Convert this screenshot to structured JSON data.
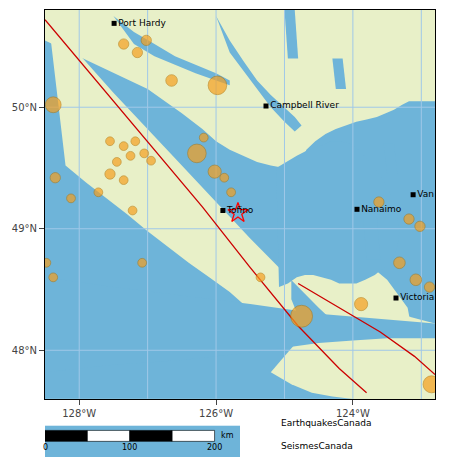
{
  "chart_data": {
    "type": "scatter",
    "xlim": [
      -128.5,
      -122.8
    ],
    "ylim": [
      47.6,
      50.8
    ],
    "xticks": [
      {
        "value": -128,
        "label": "128°W"
      },
      {
        "value": -126,
        "label": "126°W"
      },
      {
        "value": -124,
        "label": "124°W"
      }
    ],
    "yticks": [
      {
        "value": 50,
        "label": "50°N"
      },
      {
        "value": 49,
        "label": "49°N"
      },
      {
        "value": 48,
        "label": "48°N"
      }
    ],
    "background": "#6eb4d9",
    "grid": {
      "x": [
        -128,
        -127,
        -126,
        -125,
        -124,
        -123
      ],
      "y": [
        48,
        49,
        50
      ],
      "color": "#a0c8e8"
    },
    "series": [
      {
        "type": "fill",
        "color": "#e8f0c8",
        "x": [
          -128.45,
          -127.5,
          -126.5,
          -125.5,
          -124.5,
          -123.8,
          -123.5,
          -123.2,
          -123.1,
          -123.2,
          -123.5,
          -123.8,
          -124.1,
          -124.4,
          -124.6,
          -124.8,
          -124.9,
          -124.9,
          -124.8,
          -124.6,
          -124.8,
          -125.0,
          -125.2,
          -125.4,
          -125.6,
          -125.8,
          -126.1,
          -126.4,
          -126.7,
          -127.0,
          -127.3,
          -127.6,
          -127.9,
          -128.2,
          -128.45
        ],
        "y": [
          50.72,
          50.12,
          49.52,
          48.92,
          48.35,
          47.98,
          47.85,
          47.9,
          48.05,
          48.35,
          48.58,
          48.72,
          48.8,
          48.82,
          48.78,
          48.7,
          48.58,
          48.42,
          48.28,
          48.1,
          48.0,
          48.1,
          48.18,
          48.28,
          48.38,
          48.48,
          48.6,
          48.72,
          48.85,
          48.98,
          49.12,
          49.25,
          49.38,
          49.52,
          50.72
        ]
      },
      {
        "type": "fill",
        "color": "#e8f0c8",
        "x": [
          -128.5,
          -128.5,
          -127.0,
          -126.5,
          -126.2,
          -126.0,
          -125.8,
          -125.6,
          -125.4,
          -125.2,
          -125.0,
          -124.9,
          -124.8,
          -124.75,
          -124.72,
          -124.68,
          -124.55,
          -124.4,
          -124.25,
          -124.1,
          -123.95,
          -123.8,
          -123.65,
          -123.52,
          -123.4,
          -123.28,
          -123.18,
          -122.8,
          -122.8,
          -128.5
        ],
        "y": [
          50.8,
          50.55,
          50.15,
          49.95,
          49.82,
          49.72,
          49.65,
          49.6,
          49.55,
          49.52,
          49.5,
          49.5,
          49.52,
          49.55,
          49.6,
          49.65,
          49.72,
          49.78,
          49.82,
          49.85,
          49.88,
          49.9,
          49.92,
          49.95,
          49.98,
          50.02,
          50.05,
          50.05,
          50.8,
          50.8
        ]
      },
      {
        "type": "fill",
        "color": "#e8f0c8",
        "x": [
          -122.8,
          -122.8,
          -123.2,
          -123.5,
          -123.8,
          -124.1,
          -124.4,
          -124.6,
          -124.8,
          -125.0,
          -125.2,
          -124.9,
          -124.6,
          -124.3,
          -124.0,
          -123.7,
          -123.4,
          -123.1,
          -122.8
        ],
        "y": [
          47.6,
          48.22,
          48.28,
          48.32,
          48.3,
          48.25,
          48.2,
          48.15,
          48.08,
          47.95,
          47.82,
          47.72,
          47.65,
          47.62,
          47.6,
          47.6,
          47.6,
          47.6,
          47.6
        ]
      },
      {
        "type": "fill",
        "color": "#6eb4d9",
        "x": [
          -125.12,
          -124.98,
          -124.82,
          -124.65,
          -124.48,
          -124.32,
          -124.18,
          -124.05,
          -123.92,
          -123.8,
          -123.68,
          -123.58,
          -123.48,
          -123.4,
          -123.35,
          -123.32,
          -123.35,
          -123.42,
          -123.55,
          -123.68,
          -123.82,
          -123.95,
          -124.08,
          -124.2,
          -124.32,
          -124.45,
          -124.58,
          -124.7,
          -124.82,
          -124.95,
          -125.08,
          -125.12
        ],
        "y": [
          49.5,
          49.55,
          49.6,
          49.65,
          49.68,
          49.72,
          49.72,
          49.7,
          49.65,
          49.58,
          49.5,
          49.42,
          49.32,
          49.22,
          49.1,
          48.98,
          48.85,
          48.75,
          48.68,
          48.62,
          48.58,
          48.55,
          48.55,
          48.55,
          48.58,
          48.6,
          48.62,
          48.62,
          48.6,
          48.55,
          48.52,
          49.5
        ]
      },
      {
        "type": "fill",
        "color": "#6eb4d9",
        "x": [
          -128.5,
          -127.5,
          -126.5,
          -125.5,
          -124.5,
          -123.5,
          -122.8,
          -122.8,
          -123.1,
          -123.5,
          -124.0,
          -124.5,
          -125.0,
          -125.5,
          -126.0,
          -126.5,
          -127.0,
          -127.5,
          -128.0,
          -128.5
        ],
        "y": [
          48.6,
          48.52,
          48.45,
          48.38,
          48.3,
          48.25,
          48.22,
          48.1,
          48.1,
          48.1,
          48.08,
          48.06,
          48.02,
          47.98,
          47.95,
          47.92,
          47.9,
          47.88,
          47.85,
          47.82
        ]
      },
      {
        "type": "fill",
        "color": "#6eb4d9",
        "x": [
          -126.0,
          -125.8,
          -125.6,
          -125.4,
          -125.2,
          -125.0,
          -124.85,
          -124.75,
          -124.85,
          -125.0,
          -125.2,
          -125.4,
          -125.6,
          -125.8,
          -126.0
        ],
        "y": [
          50.75,
          50.55,
          50.38,
          50.22,
          50.1,
          50.0,
          49.92,
          49.85,
          49.8,
          49.88,
          50.0,
          50.15,
          50.3,
          50.45,
          50.75
        ]
      },
      {
        "type": "fill",
        "color": "#6eb4d9",
        "x": [
          -127.5,
          -127.2,
          -126.9,
          -126.6,
          -126.3,
          -126.0,
          -125.8,
          -125.8,
          -126.0,
          -126.3,
          -126.6,
          -126.9,
          -127.2,
          -127.5
        ],
        "y": [
          50.75,
          50.62,
          50.52,
          50.42,
          50.35,
          50.28,
          50.22,
          50.18,
          50.22,
          50.28,
          50.35,
          50.42,
          50.52,
          50.75
        ]
      },
      {
        "type": "fill",
        "color": "#6eb4d9",
        "x": [
          -125.0,
          -124.85,
          -124.8,
          -124.95,
          -125.0
        ],
        "y": [
          50.8,
          50.8,
          50.4,
          50.4,
          50.8
        ]
      },
      {
        "type": "fill",
        "color": "#6eb4d9",
        "x": [
          -124.3,
          -124.15,
          -124.1,
          -124.25,
          -124.3
        ],
        "y": [
          50.4,
          50.4,
          50.15,
          50.15,
          50.4
        ]
      },
      {
        "type": "fill",
        "color": "#6eb4d9",
        "x": [
          -123.55,
          -123.4,
          -123.35,
          -123.5,
          -123.55
        ],
        "y": [
          49.7,
          49.7,
          49.45,
          49.45,
          49.7
        ]
      },
      {
        "type": "fill",
        "color": "#6eb4d9",
        "x": [
          -123.85,
          -123.65,
          -123.6,
          -123.8,
          -123.85
        ],
        "y": [
          49.1,
          49.1,
          48.75,
          48.75,
          49.1
        ]
      },
      {
        "type": "line",
        "color": "#cc0000",
        "x": [
          -128.5,
          -127.8,
          -127.0,
          -126.2,
          -125.5,
          -124.8,
          -124.2,
          -123.8
        ],
        "y": [
          50.72,
          50.25,
          49.72,
          49.18,
          48.68,
          48.2,
          47.85,
          47.65
        ]
      },
      {
        "type": "line",
        "color": "#cc0000",
        "x": [
          -124.8,
          -124.2,
          -123.6,
          -123.1,
          -122.8
        ],
        "y": [
          48.55,
          48.35,
          48.15,
          47.95,
          47.8
        ]
      },
      {
        "type": "scatter",
        "marker": "circle",
        "color": "#f5a020",
        "edge_color": "#b07000",
        "x": [
          -127.35,
          -127.02,
          -127.15,
          -128.38,
          -127.55,
          -127.35,
          -127.18,
          -127.05,
          -126.95,
          -127.25,
          -127.45,
          -127.55,
          -127.35,
          -127.72,
          -127.22,
          -128.35,
          -128.12,
          -128.48,
          -128.38,
          -127.08,
          -126.28,
          -126.02,
          -125.88,
          -125.78,
          -126.18,
          -126.65,
          -125.98,
          -123.62,
          -123.18,
          -123.02,
          -123.32,
          -123.08,
          -122.88,
          -123.88,
          -125.35,
          -124.75,
          -122.85
        ],
        "y": [
          50.52,
          50.55,
          50.45,
          50.02,
          49.72,
          49.68,
          49.72,
          49.62,
          49.56,
          49.6,
          49.55,
          49.45,
          49.4,
          49.3,
          49.15,
          49.42,
          49.25,
          48.72,
          48.6,
          48.72,
          49.62,
          49.47,
          49.42,
          49.3,
          49.75,
          50.22,
          50.18,
          49.22,
          49.08,
          49.02,
          48.72,
          48.58,
          48.52,
          48.38,
          48.6,
          48.28,
          47.72
        ],
        "size": [
          55,
          55,
          55,
          130,
          40,
          40,
          40,
          40,
          40,
          40,
          40,
          55,
          40,
          40,
          40,
          55,
          40,
          40,
          40,
          40,
          180,
          90,
          40,
          40,
          40,
          70,
          180,
          55,
          55,
          55,
          70,
          70,
          55,
          90,
          40,
          250,
          150
        ]
      },
      {
        "type": "scatter",
        "marker": "star",
        "color": "red",
        "x": [
          -125.68
        ],
        "y": [
          49.13
        ]
      },
      {
        "type": "scatter",
        "marker": "square",
        "color": "black",
        "x": [
          -127.49,
          -125.27,
          -125.9,
          -123.94,
          -123.37,
          -123.12
        ],
        "y": [
          50.69,
          50.01,
          49.15,
          49.16,
          48.43,
          49.28
        ],
        "labels": [
          "Port Hardy",
          "Campbell River",
          "Tofino",
          "Nanaimo",
          "Victoria",
          "Van"
        ]
      }
    ],
    "scale_bar": {
      "xlim": [
        0,
        230
      ],
      "segments": [
        {
          "from": 0,
          "to": 50,
          "color": "black"
        },
        {
          "from": 50,
          "to": 100,
          "color": "white"
        },
        {
          "from": 100,
          "to": 150,
          "color": "black"
        },
        {
          "from": 150,
          "to": 200,
          "color": "white"
        }
      ],
      "ticks": [
        0,
        100,
        200
      ],
      "unit": "km"
    },
    "annotations": [
      "EarthquakesCanada",
      "SeismesCanada"
    ]
  }
}
